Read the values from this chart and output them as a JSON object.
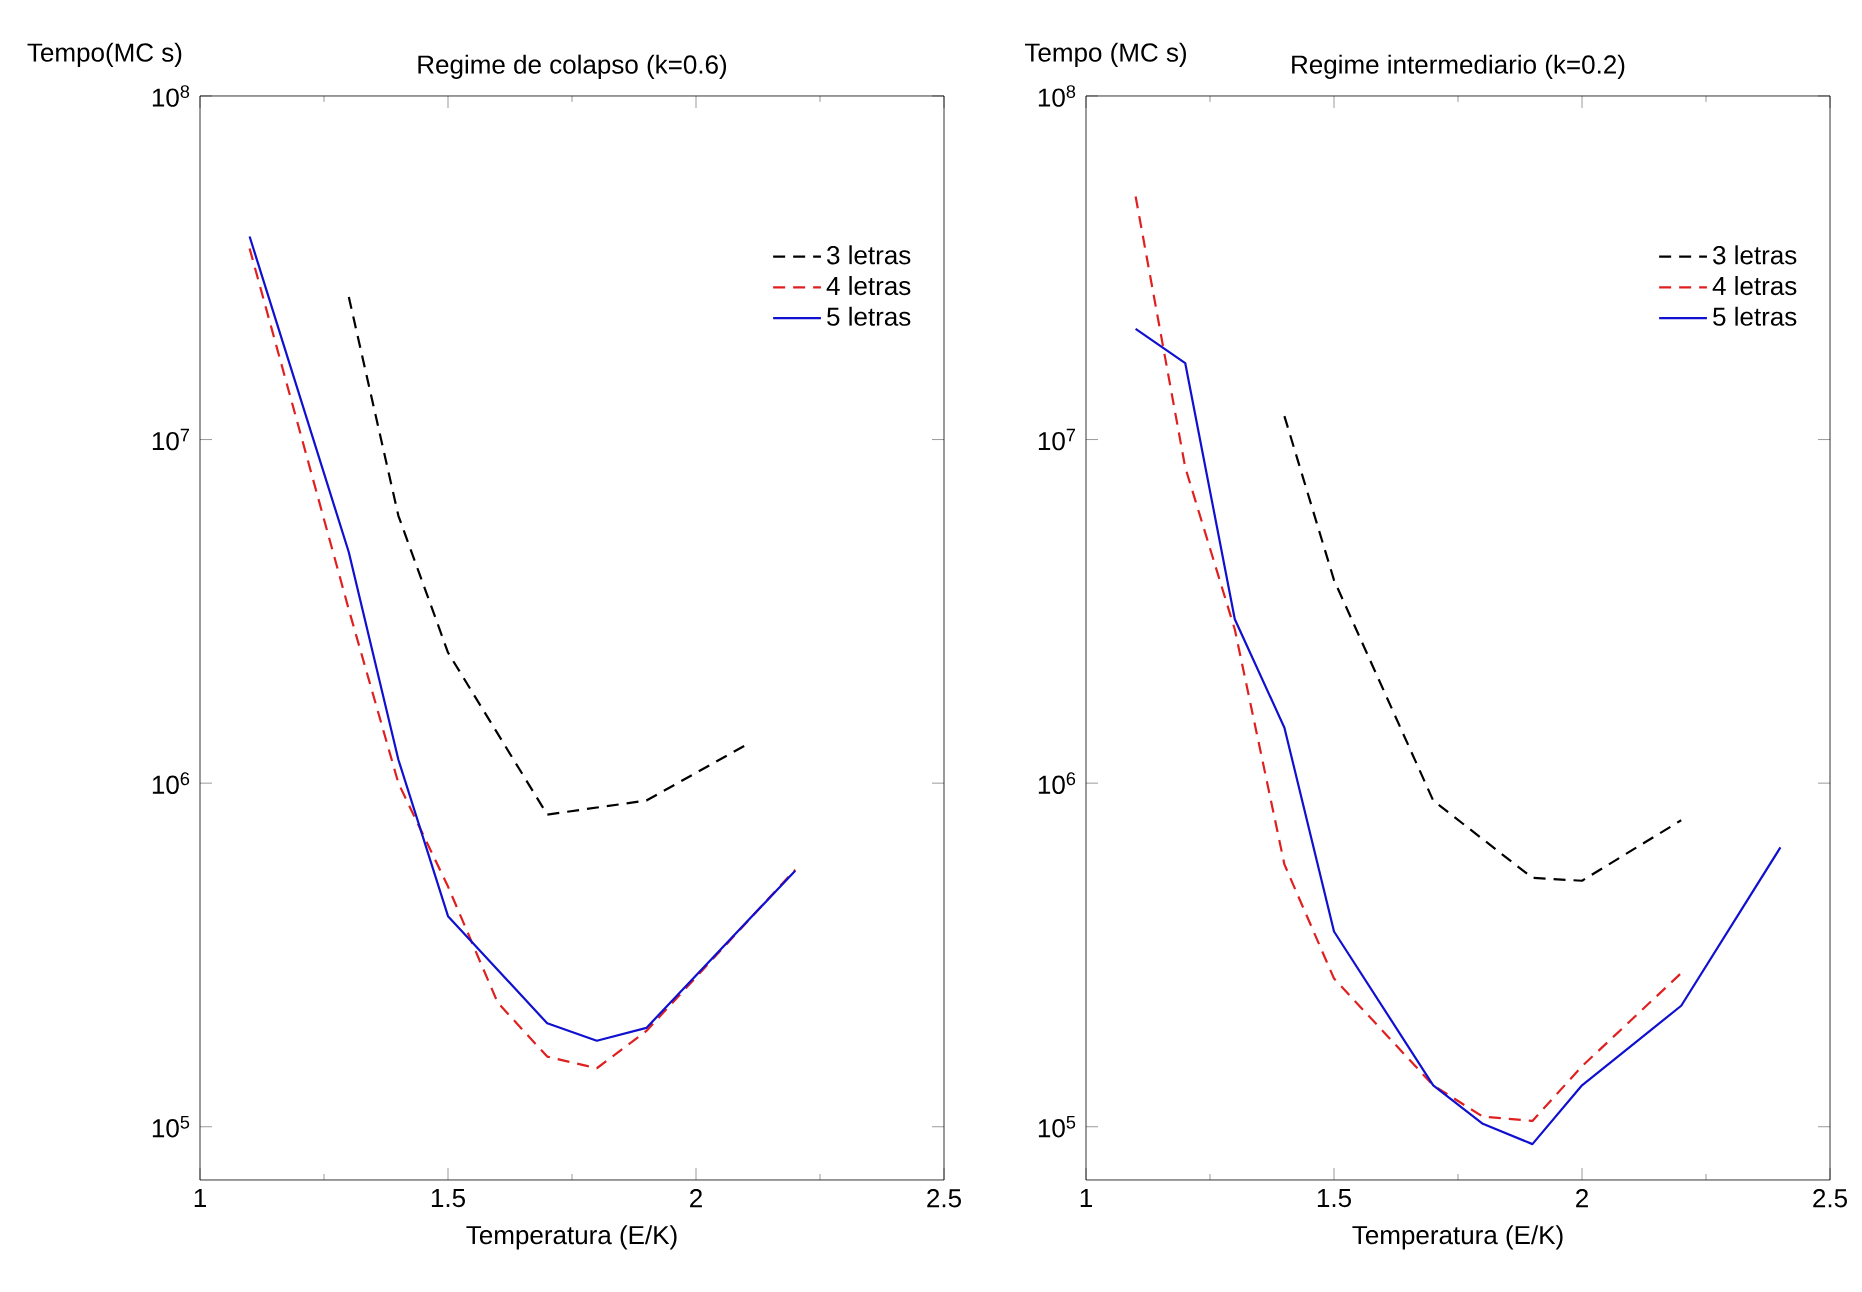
{
  "chart_data": [
    {
      "type": "line",
      "title": "Regime de colapso (k=0.6)",
      "xlabel": "Temperatura (E/K)",
      "ylabel": "Tempo(MC s)",
      "log": "y",
      "grid": false,
      "marker": "none",
      "legend": "top right",
      "xlim": [
        1,
        2.5
      ],
      "xticks": [
        1,
        1.5,
        2,
        2.5
      ],
      "ylim": [
        70000,
        100000000
      ],
      "yticks": [
        {
          "value": 100000,
          "label": "10$^{5}$"
        },
        {
          "value": 1000000,
          "label": "10$^{6}$"
        },
        {
          "value": 10000000,
          "label": "10$^{7}$"
        },
        {
          "value": 100000000,
          "label": "10$^{8}$"
        }
      ],
      "series": [
        {
          "name": "3 letras",
          "color": "#000000",
          "line_style": "dashed",
          "x": [
            1.3,
            1.4,
            1.5,
            1.7,
            1.9,
            2.1
          ],
          "values": [
            26000000,
            6000000,
            2400000,
            810000,
            890000,
            1290000
          ]
        },
        {
          "name": "4 letras",
          "color": "#e02020",
          "line_style": "dashed",
          "x": [
            1.1,
            1.3,
            1.4,
            1.5,
            1.6,
            1.7,
            1.8,
            1.9,
            2.2
          ],
          "values": [
            36000000,
            3200000,
            1000000,
            500000,
            230000,
            160000,
            148000,
            190000,
            560000
          ]
        },
        {
          "name": "5 letras",
          "color": "#1010d0",
          "line_style": "solid",
          "x": [
            1.1,
            1.3,
            1.4,
            1.5,
            1.7,
            1.8,
            1.9,
            2.2
          ],
          "values": [
            39000000,
            4700000,
            1170000,
            410000,
            200000,
            178000,
            194000,
            556000
          ]
        }
      ]
    },
    {
      "type": "line",
      "title": "Regime intermediario (k=0.2)",
      "xlabel": "Temperatura (E/K)",
      "ylabel": "Tempo (MC s)",
      "log": "y",
      "grid": false,
      "marker": "none",
      "legend": "top right",
      "xlim": [
        1,
        2.5
      ],
      "xticks": [
        1,
        1.5,
        2,
        2.5
      ],
      "ylim": [
        70000,
        100000000
      ],
      "yticks": [
        {
          "value": 100000,
          "label": "10$^{5}$"
        },
        {
          "value": 1000000,
          "label": "10$^{6}$"
        },
        {
          "value": 10000000,
          "label": "10$^{7}$"
        },
        {
          "value": 100000000,
          "label": "10$^{8}$"
        }
      ],
      "series": [
        {
          "name": "3 letras",
          "color": "#000000",
          "line_style": "dashed",
          "x": [
            1.4,
            1.5,
            1.7,
            1.9,
            2.0,
            2.2
          ],
          "values": [
            11700000,
            3900000,
            890000,
            530000,
            520000,
            780000
          ]
        },
        {
          "name": "4 letras",
          "color": "#e02020",
          "line_style": "dashed",
          "x": [
            1.1,
            1.2,
            1.3,
            1.4,
            1.5,
            1.7,
            1.8,
            1.9,
            2.0,
            2.2
          ],
          "values": [
            51000000,
            8300000,
            2800000,
            580000,
            270000,
            132000,
            107000,
            104000,
            150000,
            280000
          ]
        },
        {
          "name": "5 letras",
          "color": "#1010d0",
          "line_style": "solid",
          "x": [
            1.1,
            1.2,
            1.3,
            1.4,
            1.5,
            1.7,
            1.8,
            1.9,
            2.0,
            2.2,
            2.4
          ],
          "values": [
            21000000,
            16700000,
            3000000,
            1450000,
            370000,
            132000,
            102000,
            89000,
            132000,
            225000,
            650000
          ]
        }
      ]
    }
  ]
}
